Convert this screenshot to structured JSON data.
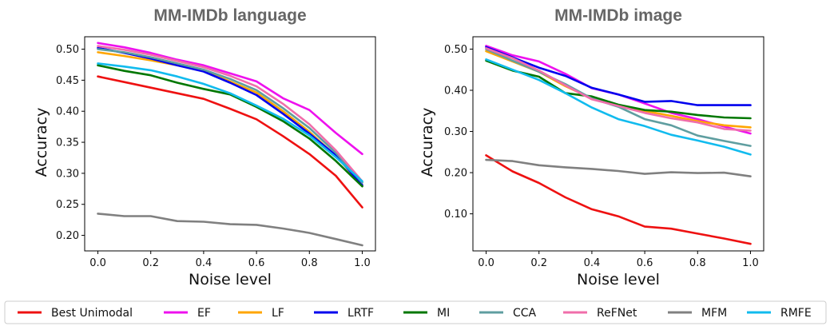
{
  "chart_data": [
    {
      "type": "line",
      "title": "MM-IMDb language",
      "xlabel": "Noise level",
      "ylabel": "Accuracy",
      "x": [
        0.0,
        0.1,
        0.2,
        0.3,
        0.4,
        0.5,
        0.6,
        0.7,
        0.8,
        0.9,
        1.0
      ],
      "xlim": [
        -0.05,
        1.05
      ],
      "ylim": [
        0.175,
        0.52
      ],
      "xticks": [
        0.0,
        0.2,
        0.4,
        0.6,
        0.8,
        1.0
      ],
      "xtick_labels": [
        "0.0",
        "0.2",
        "0.4",
        "0.6",
        "0.8",
        "1.0"
      ],
      "yticks": [
        0.2,
        0.25,
        0.3,
        0.35,
        0.4,
        0.45,
        0.5
      ],
      "ytick_labels": [
        "0.20",
        "0.25",
        "0.30",
        "0.35",
        "0.40",
        "0.45",
        "0.50"
      ],
      "grid": false,
      "series": [
        {
          "name": "Best Unimodal",
          "color": "#ee1111",
          "values": [
            0.456,
            0.447,
            0.438,
            0.429,
            0.42,
            0.404,
            0.387,
            0.36,
            0.331,
            0.296,
            0.245
          ]
        },
        {
          "name": "EF",
          "color": "#ee11ee",
          "values": [
            0.51,
            0.503,
            0.494,
            0.483,
            0.474,
            0.461,
            0.448,
            0.421,
            0.402,
            0.365,
            0.331
          ]
        },
        {
          "name": "LF",
          "color": "#ffa500",
          "values": [
            0.495,
            0.489,
            0.482,
            0.474,
            0.465,
            0.448,
            0.43,
            0.4,
            0.367,
            0.328,
            0.281
          ]
        },
        {
          "name": "LRTF",
          "color": "#0000ee",
          "values": [
            0.502,
            0.494,
            0.485,
            0.474,
            0.464,
            0.446,
            0.426,
            0.396,
            0.364,
            0.329,
            0.281
          ]
        },
        {
          "name": "MI",
          "color": "#007700",
          "values": [
            0.474,
            0.465,
            0.458,
            0.446,
            0.436,
            0.427,
            0.407,
            0.384,
            0.356,
            0.32,
            0.279
          ]
        },
        {
          "name": "CCA",
          "color": "#5f9ea0",
          "values": [
            0.5,
            0.495,
            0.487,
            0.477,
            0.467,
            0.452,
            0.434,
            0.405,
            0.373,
            0.333,
            0.285
          ]
        },
        {
          "name": "ReFNet",
          "color": "#f06eaa",
          "values": [
            0.505,
            0.499,
            0.491,
            0.481,
            0.471,
            0.457,
            0.44,
            0.412,
            0.379,
            0.337,
            0.287
          ]
        },
        {
          "name": "MFM",
          "color": "#808080",
          "values": [
            0.235,
            0.231,
            0.231,
            0.223,
            0.222,
            0.218,
            0.217,
            0.211,
            0.204,
            0.194,
            0.184
          ]
        },
        {
          "name": "RMFE",
          "color": "#11bbee",
          "values": [
            0.477,
            0.472,
            0.466,
            0.456,
            0.444,
            0.429,
            0.409,
            0.388,
            0.361,
            0.326,
            0.287
          ]
        }
      ]
    },
    {
      "type": "line",
      "title": "MM-IMDb image",
      "xlabel": "Noise level",
      "ylabel": "Accuracy",
      "x": [
        0.0,
        0.1,
        0.2,
        0.3,
        0.4,
        0.5,
        0.6,
        0.7,
        0.8,
        0.9,
        1.0
      ],
      "xlim": [
        -0.05,
        1.05
      ],
      "ylim": [
        0.01,
        0.53
      ],
      "xticks": [
        0.0,
        0.2,
        0.4,
        0.6,
        0.8,
        1.0
      ],
      "xtick_labels": [
        "0.0",
        "0.2",
        "0.4",
        "0.6",
        "0.8",
        "1.0"
      ],
      "yticks": [
        0.1,
        0.2,
        0.3,
        0.4,
        0.5
      ],
      "ytick_labels": [
        "0.10",
        "0.20",
        "0.30",
        "0.40",
        "0.50"
      ],
      "grid": false,
      "series": [
        {
          "name": "Best Unimodal",
          "color": "#ee1111",
          "values": [
            0.242,
            0.203,
            0.175,
            0.14,
            0.111,
            0.094,
            0.069,
            0.064,
            0.052,
            0.04,
            0.027
          ]
        },
        {
          "name": "EF",
          "color": "#ee11ee",
          "values": [
            0.508,
            0.485,
            0.47,
            0.44,
            0.405,
            0.39,
            0.368,
            0.345,
            0.33,
            0.312,
            0.295
          ]
        },
        {
          "name": "LF",
          "color": "#ffa500",
          "values": [
            0.495,
            0.47,
            0.445,
            0.41,
            0.38,
            0.363,
            0.35,
            0.338,
            0.325,
            0.315,
            0.31
          ]
        },
        {
          "name": "LRTF",
          "color": "#0000ee",
          "values": [
            0.505,
            0.48,
            0.455,
            0.435,
            0.406,
            0.39,
            0.372,
            0.374,
            0.364,
            0.364,
            0.364
          ]
        },
        {
          "name": "MI",
          "color": "#007700",
          "values": [
            0.472,
            0.448,
            0.433,
            0.393,
            0.385,
            0.365,
            0.352,
            0.348,
            0.34,
            0.334,
            0.332
          ]
        },
        {
          "name": "CCA",
          "color": "#5f9ea0",
          "values": [
            0.5,
            0.472,
            0.445,
            0.415,
            0.38,
            0.36,
            0.33,
            0.315,
            0.29,
            0.277,
            0.265
          ]
        },
        {
          "name": "ReFNet",
          "color": "#f06eaa",
          "values": [
            0.502,
            0.478,
            0.448,
            0.412,
            0.378,
            0.362,
            0.345,
            0.332,
            0.322,
            0.306,
            0.302
          ]
        },
        {
          "name": "MFM",
          "color": "#808080",
          "values": [
            0.231,
            0.228,
            0.218,
            0.213,
            0.209,
            0.204,
            0.197,
            0.201,
            0.199,
            0.2,
            0.191
          ]
        },
        {
          "name": "RMFE",
          "color": "#11bbee",
          "values": [
            0.475,
            0.45,
            0.425,
            0.393,
            0.358,
            0.33,
            0.313,
            0.292,
            0.278,
            0.263,
            0.244
          ]
        }
      ]
    }
  ],
  "legend": {
    "placement": "bottom",
    "items": [
      {
        "label": "Best Unimodal",
        "color": "#ee1111"
      },
      {
        "label": "EF",
        "color": "#ee11ee"
      },
      {
        "label": "LF",
        "color": "#ffa500"
      },
      {
        "label": "LRTF",
        "color": "#0000ee"
      },
      {
        "label": "MI",
        "color": "#007700"
      },
      {
        "label": "CCA",
        "color": "#5f9ea0"
      },
      {
        "label": "ReFNet",
        "color": "#f06eaa"
      },
      {
        "label": "MFM",
        "color": "#808080"
      },
      {
        "label": "RMFE",
        "color": "#11bbee"
      }
    ]
  }
}
